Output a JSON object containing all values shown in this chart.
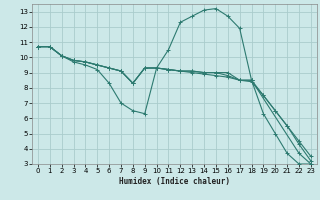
{
  "xlabel": "Humidex (Indice chaleur)",
  "bg_color": "#cce8e8",
  "grid_color": "#aacccc",
  "line_color": "#2d7a70",
  "xlim": [
    -0.5,
    23.5
  ],
  "ylim": [
    3,
    13.5
  ],
  "ytick_min": 3,
  "ytick_max": 13,
  "xticks": [
    0,
    1,
    2,
    3,
    4,
    5,
    6,
    7,
    8,
    9,
    10,
    11,
    12,
    13,
    14,
    15,
    16,
    17,
    18,
    19,
    20,
    21,
    22,
    23
  ],
  "yticks": [
    3,
    4,
    5,
    6,
    7,
    8,
    9,
    10,
    11,
    12,
    13
  ],
  "lines": [
    {
      "x": [
        0,
        1,
        2,
        3,
        4,
        5,
        6,
        7,
        8,
        9,
        10,
        11,
        12,
        13,
        14,
        15,
        16,
        17,
        18,
        19,
        20,
        21,
        22,
        23
      ],
      "y": [
        10.7,
        10.7,
        10.1,
        9.7,
        9.5,
        9.2,
        8.3,
        7.0,
        6.5,
        6.3,
        9.3,
        10.5,
        12.3,
        12.7,
        13.1,
        13.2,
        12.7,
        11.9,
        8.5,
        6.3,
        5.0,
        3.7,
        3.0,
        3.0
      ]
    },
    {
      "x": [
        0,
        1,
        2,
        3,
        4,
        5,
        6,
        7,
        8,
        9,
        10,
        11,
        12,
        13,
        14,
        15,
        16,
        17,
        18,
        22,
        23
      ],
      "y": [
        10.7,
        10.7,
        10.1,
        9.8,
        9.7,
        9.5,
        9.3,
        9.1,
        8.3,
        9.3,
        9.3,
        9.2,
        9.1,
        9.1,
        9.0,
        9.0,
        9.0,
        8.5,
        8.5,
        3.7,
        3.0
      ]
    },
    {
      "x": [
        0,
        1,
        2,
        3,
        4,
        5,
        6,
        7,
        8,
        9,
        10,
        11,
        12,
        13,
        14,
        15,
        16,
        17,
        18,
        19,
        20,
        21,
        22,
        23
      ],
      "y": [
        10.7,
        10.7,
        10.1,
        9.8,
        9.7,
        9.5,
        9.3,
        9.1,
        8.3,
        9.3,
        9.3,
        9.2,
        9.1,
        9.1,
        9.0,
        9.0,
        8.8,
        8.5,
        8.5,
        7.5,
        6.5,
        5.5,
        4.5,
        3.5
      ]
    },
    {
      "x": [
        0,
        1,
        2,
        3,
        4,
        5,
        6,
        7,
        8,
        9,
        10,
        11,
        12,
        13,
        14,
        15,
        16,
        17,
        18,
        19,
        20,
        21,
        22,
        23
      ],
      "y": [
        10.7,
        10.7,
        10.1,
        9.8,
        9.7,
        9.5,
        9.3,
        9.1,
        8.3,
        9.3,
        9.3,
        9.2,
        9.1,
        9.0,
        8.9,
        8.8,
        8.7,
        8.5,
        8.4,
        7.5,
        6.5,
        5.5,
        4.3,
        3.2
      ]
    }
  ]
}
